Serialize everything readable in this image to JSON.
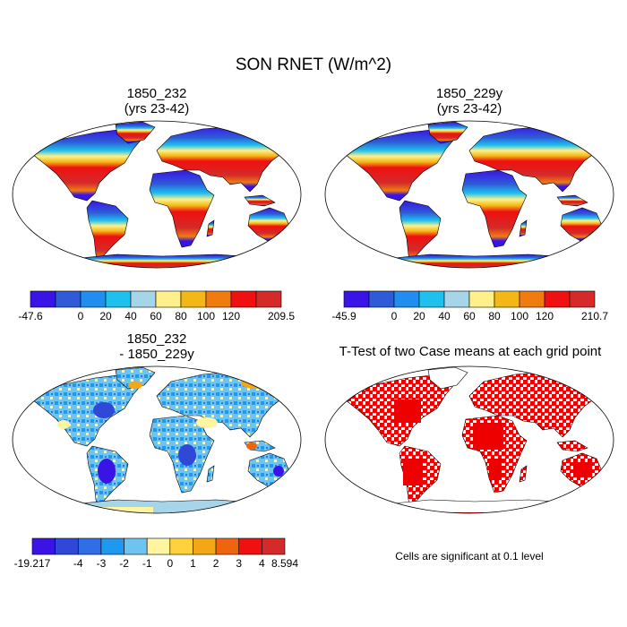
{
  "figure": {
    "title": "SON RNET (W/m^2)"
  },
  "panels": [
    {
      "id": "case1",
      "title_line1": "1850_232",
      "title_line2": "(yrs 23-42)"
    },
    {
      "id": "case2",
      "title_line1": "1850_229y",
      "title_line2": "(yrs 23-42)"
    },
    {
      "id": "diff",
      "title_line1": "1850_232",
      "title_line2": "- 1850_229y"
    },
    {
      "id": "ttest",
      "title_line1": "T-Test of two Case means at each grid point",
      "title_line2": ""
    }
  ],
  "colorbars": {
    "case1": {
      "min_label": "-47.6",
      "max_label": "209.5",
      "tick_labels": [
        "0",
        "20",
        "40",
        "60",
        "80",
        "100",
        "120"
      ],
      "colors": [
        "#3a14e6",
        "#2f5ad8",
        "#1f8ef0",
        "#1ec0ee",
        "#a6d4e8",
        "#fff08c",
        "#f4b816",
        "#f07c10",
        "#f01010",
        "#d42a2a"
      ]
    },
    "case2": {
      "min_label": "-45.9",
      "max_label": "210.7",
      "tick_labels": [
        "0",
        "20",
        "40",
        "60",
        "80",
        "100",
        "120"
      ],
      "colors": [
        "#3a14e6",
        "#2f5ad8",
        "#1f8ef0",
        "#1ec0ee",
        "#a6d4e8",
        "#fff08c",
        "#f4b816",
        "#f07c10",
        "#f01010",
        "#d42a2a"
      ]
    },
    "diff": {
      "min_label": "-19.217",
      "max_label": "8.594",
      "tick_labels": [
        "-4",
        "-3",
        "-2",
        "-1",
        "0",
        "1",
        "2",
        "3",
        "4"
      ],
      "colors": [
        "#3a14e6",
        "#2f48d8",
        "#2f6ee6",
        "#1f98f0",
        "#6ec4ee",
        "#fff4a0",
        "#ffd23c",
        "#f4a616",
        "#f06410",
        "#f01010",
        "#d42a2a"
      ]
    }
  },
  "ttest_note": "Cells are significant at 0.1 level",
  "colors": {
    "significant": "#ee0000",
    "map_outline": "#000000"
  }
}
